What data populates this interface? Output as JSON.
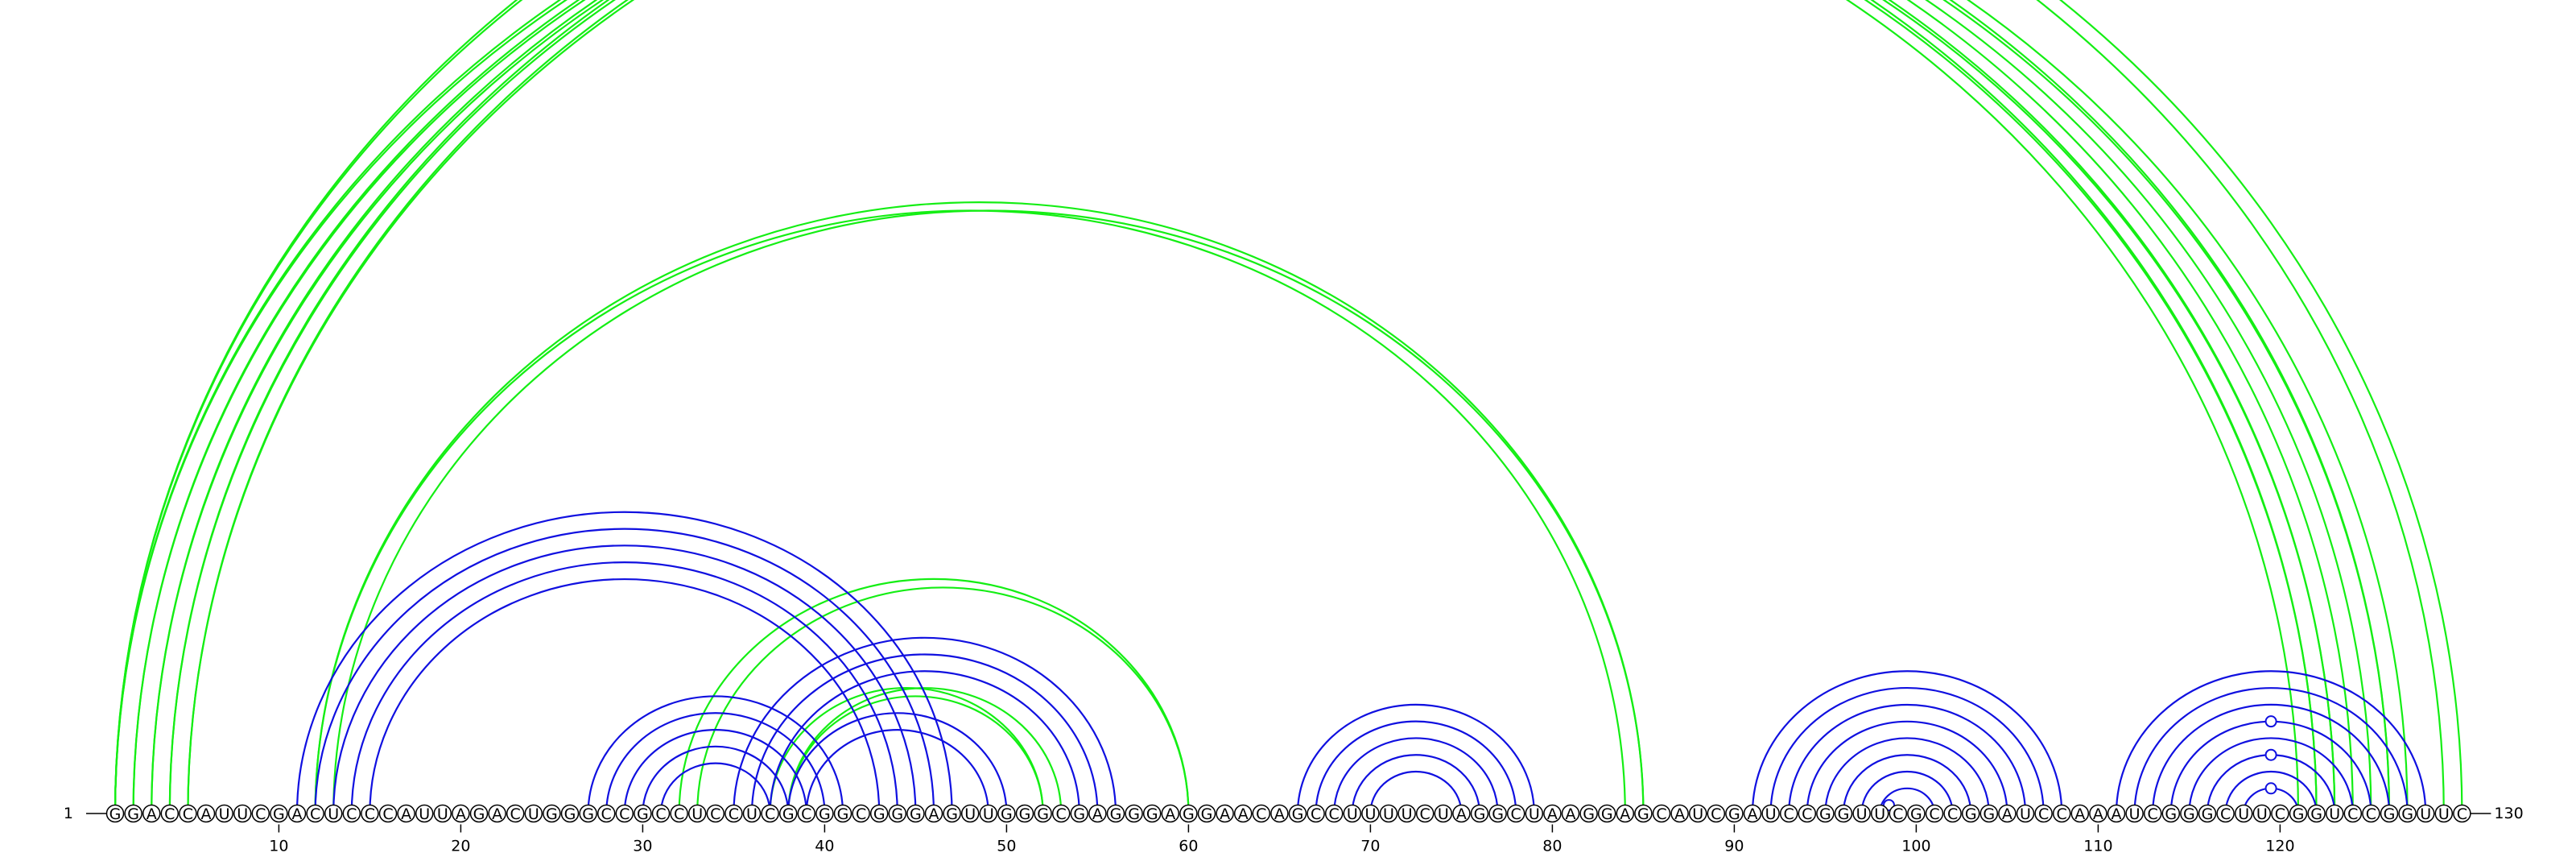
{
  "diagram": {
    "sequence": "GGACCAUUCGACUCCCAUUAGACUGGGCCGCCUCCUCGCGGCGGGAGUUGGGCGAGGGAGGAACAGCCUUUUCUAGGCUAAGGAGCAUCGAUCCGGUUCGCCGGAUCCAAAUCGGGCUUCGGUCCGGUUC",
    "start_label": "1",
    "end_label": "130",
    "ticks": [
      "10",
      "20",
      "30",
      "40",
      "50",
      "60",
      "70",
      "80",
      "90",
      "100",
      "110",
      "120"
    ],
    "colors": {
      "blue": "#1010e0",
      "green": "#14ee14"
    },
    "arcs": [
      {
        "i": 1,
        "j": 121,
        "color": "green"
      },
      {
        "i": 1,
        "j": 122,
        "color": "green"
      },
      {
        "i": 2,
        "j": 122,
        "color": "green"
      },
      {
        "i": 2,
        "j": 123,
        "color": "green"
      },
      {
        "i": 3,
        "j": 123,
        "color": "green"
      },
      {
        "i": 3,
        "j": 124,
        "color": "green"
      },
      {
        "i": 4,
        "j": 125,
        "color": "green"
      },
      {
        "i": 4,
        "j": 126,
        "color": "green"
      },
      {
        "i": 5,
        "j": 126,
        "color": "green"
      },
      {
        "i": 5,
        "j": 127,
        "color": "green"
      },
      {
        "i": 1,
        "j": 130,
        "color": "green"
      },
      {
        "i": 1,
        "j": 129,
        "color": "green"
      },
      {
        "i": 12,
        "j": 84,
        "color": "green"
      },
      {
        "i": 12,
        "j": 85,
        "color": "green"
      },
      {
        "i": 13,
        "j": 85,
        "color": "green"
      },
      {
        "i": 32,
        "j": 60,
        "color": "green"
      },
      {
        "i": 33,
        "j": 60,
        "color": "green"
      },
      {
        "i": 37,
        "j": 52,
        "color": "green"
      },
      {
        "i": 38,
        "j": 52,
        "color": "green"
      },
      {
        "i": 38,
        "j": 53,
        "color": "green"
      },
      {
        "i": 11,
        "j": 47,
        "color": "blue"
      },
      {
        "i": 12,
        "j": 46,
        "color": "blue"
      },
      {
        "i": 13,
        "j": 45,
        "color": "blue"
      },
      {
        "i": 14,
        "j": 44,
        "color": "blue"
      },
      {
        "i": 15,
        "j": 43,
        "color": "blue"
      },
      {
        "i": 27,
        "j": 41,
        "color": "blue"
      },
      {
        "i": 28,
        "j": 40,
        "color": "blue"
      },
      {
        "i": 29,
        "j": 39,
        "color": "blue"
      },
      {
        "i": 30,
        "j": 38,
        "color": "blue"
      },
      {
        "i": 31,
        "j": 37,
        "color": "blue"
      },
      {
        "i": 35,
        "j": 56,
        "color": "blue"
      },
      {
        "i": 36,
        "j": 55,
        "color": "blue"
      },
      {
        "i": 37,
        "j": 54,
        "color": "blue"
      },
      {
        "i": 38,
        "j": 50,
        "color": "blue"
      },
      {
        "i": 39,
        "j": 49,
        "color": "blue"
      },
      {
        "i": 66,
        "j": 79,
        "color": "blue"
      },
      {
        "i": 67,
        "j": 78,
        "color": "blue"
      },
      {
        "i": 68,
        "j": 77,
        "color": "blue"
      },
      {
        "i": 69,
        "j": 76,
        "color": "blue"
      },
      {
        "i": 70,
        "j": 75,
        "color": "blue"
      },
      {
        "i": 91,
        "j": 108,
        "color": "blue"
      },
      {
        "i": 92,
        "j": 107,
        "color": "blue"
      },
      {
        "i": 93,
        "j": 106,
        "color": "blue"
      },
      {
        "i": 94,
        "j": 105,
        "color": "blue"
      },
      {
        "i": 95,
        "j": 104,
        "color": "blue"
      },
      {
        "i": 96,
        "j": 103,
        "color": "blue"
      },
      {
        "i": 97,
        "j": 102,
        "color": "blue"
      },
      {
        "i": 98,
        "j": 101,
        "color": "blue"
      },
      {
        "i": 98,
        "j": 99,
        "color": "blue"
      },
      {
        "i": 111,
        "j": 128,
        "color": "blue"
      },
      {
        "i": 112,
        "j": 127,
        "color": "blue"
      },
      {
        "i": 113,
        "j": 126,
        "color": "blue"
      },
      {
        "i": 114,
        "j": 125,
        "color": "blue"
      },
      {
        "i": 115,
        "j": 124,
        "color": "blue"
      },
      {
        "i": 116,
        "j": 123,
        "color": "blue"
      },
      {
        "i": 117,
        "j": 122,
        "color": "blue"
      },
      {
        "i": 118,
        "j": 121,
        "color": "blue"
      }
    ],
    "markers": [
      {
        "i": 1,
        "j": 129,
        "color": "green"
      },
      {
        "i": 98,
        "j": 99,
        "color": "blue"
      },
      {
        "i": 114,
        "j": 125,
        "color": "blue"
      },
      {
        "i": 116,
        "j": 123,
        "color": "blue"
      },
      {
        "i": 118,
        "j": 121,
        "color": "blue"
      }
    ]
  }
}
